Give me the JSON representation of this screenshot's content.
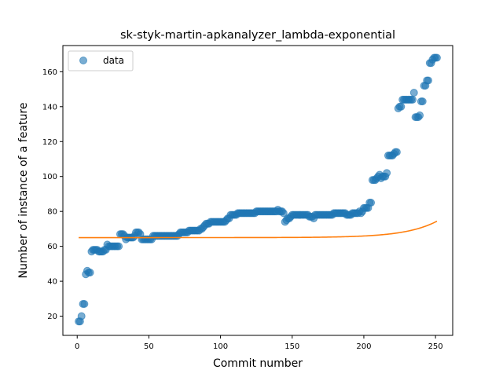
{
  "chart_data": {
    "type": "scatter",
    "title": "sk-styk-martin-apkanalyzer_lambda-exponential",
    "xlabel": "Commit number",
    "ylabel": "Number of instance of a feature",
    "xlim": [
      -10,
      262
    ],
    "ylim": [
      9,
      175
    ],
    "xticks": [
      0,
      50,
      100,
      150,
      200,
      250
    ],
    "yticks": [
      20,
      40,
      60,
      80,
      100,
      120,
      140,
      160
    ],
    "grid": false,
    "legend": {
      "placement": "top-left",
      "entries": [
        "data"
      ]
    },
    "colors": {
      "data": "#1f77b4",
      "fit": "#ff7f0e"
    },
    "series": [
      {
        "name": "data",
        "kind": "scatter",
        "points": [
          [
            1,
            17
          ],
          [
            2,
            17
          ],
          [
            3,
            20
          ],
          [
            4,
            27
          ],
          [
            5,
            27
          ],
          [
            6,
            44
          ],
          [
            7,
            46
          ],
          [
            8,
            45
          ],
          [
            9,
            45
          ],
          [
            10,
            57
          ],
          [
            11,
            58
          ],
          [
            12,
            58
          ],
          [
            13,
            58
          ],
          [
            14,
            58
          ],
          [
            15,
            57
          ],
          [
            16,
            57
          ],
          [
            17,
            57
          ],
          [
            18,
            57
          ],
          [
            19,
            58
          ],
          [
            20,
            58
          ],
          [
            21,
            61
          ],
          [
            22,
            60
          ],
          [
            23,
            60
          ],
          [
            24,
            60
          ],
          [
            25,
            60
          ],
          [
            26,
            60
          ],
          [
            27,
            60
          ],
          [
            28,
            60
          ],
          [
            29,
            60
          ],
          [
            30,
            67
          ],
          [
            31,
            67
          ],
          [
            32,
            67
          ],
          [
            33,
            66
          ],
          [
            34,
            64
          ],
          [
            35,
            65
          ],
          [
            36,
            65
          ],
          [
            37,
            65
          ],
          [
            38,
            65
          ],
          [
            39,
            65
          ],
          [
            40,
            66
          ],
          [
            41,
            68
          ],
          [
            42,
            68
          ],
          [
            43,
            68
          ],
          [
            44,
            67
          ],
          [
            45,
            64
          ],
          [
            46,
            64
          ],
          [
            47,
            64
          ],
          [
            48,
            64
          ],
          [
            49,
            64
          ],
          [
            50,
            64
          ],
          [
            51,
            64
          ],
          [
            52,
            64
          ],
          [
            53,
            66
          ],
          [
            54,
            66
          ],
          [
            55,
            66
          ],
          [
            56,
            66
          ],
          [
            57,
            66
          ],
          [
            58,
            66
          ],
          [
            59,
            66
          ],
          [
            60,
            66
          ],
          [
            61,
            66
          ],
          [
            62,
            66
          ],
          [
            63,
            66
          ],
          [
            64,
            66
          ],
          [
            65,
            66
          ],
          [
            66,
            66
          ],
          [
            67,
            66
          ],
          [
            68,
            66
          ],
          [
            69,
            66
          ],
          [
            70,
            66
          ],
          [
            71,
            67
          ],
          [
            72,
            68
          ],
          [
            73,
            68
          ],
          [
            74,
            68
          ],
          [
            75,
            68
          ],
          [
            76,
            68
          ],
          [
            77,
            68
          ],
          [
            78,
            69
          ],
          [
            79,
            69
          ],
          [
            80,
            69
          ],
          [
            81,
            69
          ],
          [
            82,
            69
          ],
          [
            83,
            69
          ],
          [
            84,
            69
          ],
          [
            85,
            69
          ],
          [
            86,
            70
          ],
          [
            87,
            70
          ],
          [
            88,
            71
          ],
          [
            89,
            72
          ],
          [
            90,
            73
          ],
          [
            91,
            73
          ],
          [
            92,
            73
          ],
          [
            93,
            74
          ],
          [
            94,
            74
          ],
          [
            95,
            74
          ],
          [
            96,
            74
          ],
          [
            97,
            74
          ],
          [
            98,
            74
          ],
          [
            99,
            74
          ],
          [
            100,
            74
          ],
          [
            101,
            74
          ],
          [
            102,
            74
          ],
          [
            103,
            74
          ],
          [
            104,
            75
          ],
          [
            105,
            76
          ],
          [
            106,
            76
          ],
          [
            107,
            78
          ],
          [
            108,
            78
          ],
          [
            109,
            78
          ],
          [
            110,
            78
          ],
          [
            111,
            78
          ],
          [
            112,
            79
          ],
          [
            113,
            79
          ],
          [
            114,
            79
          ],
          [
            115,
            79
          ],
          [
            116,
            79
          ],
          [
            117,
            79
          ],
          [
            118,
            79
          ],
          [
            119,
            79
          ],
          [
            120,
            79
          ],
          [
            121,
            79
          ],
          [
            122,
            79
          ],
          [
            123,
            79
          ],
          [
            124,
            79
          ],
          [
            125,
            80
          ],
          [
            126,
            80
          ],
          [
            127,
            80
          ],
          [
            128,
            80
          ],
          [
            129,
            80
          ],
          [
            130,
            80
          ],
          [
            131,
            80
          ],
          [
            132,
            80
          ],
          [
            133,
            80
          ],
          [
            134,
            80
          ],
          [
            135,
            80
          ],
          [
            136,
            80
          ],
          [
            137,
            80
          ],
          [
            138,
            80
          ],
          [
            139,
            80
          ],
          [
            140,
            81
          ],
          [
            141,
            80
          ],
          [
            142,
            80
          ],
          [
            143,
            80
          ],
          [
            144,
            79
          ],
          [
            145,
            74
          ],
          [
            146,
            75
          ],
          [
            147,
            76
          ],
          [
            148,
            76
          ],
          [
            149,
            77
          ],
          [
            150,
            78
          ],
          [
            151,
            78
          ],
          [
            152,
            78
          ],
          [
            153,
            78
          ],
          [
            154,
            78
          ],
          [
            155,
            78
          ],
          [
            156,
            78
          ],
          [
            157,
            78
          ],
          [
            158,
            78
          ],
          [
            159,
            78
          ],
          [
            160,
            78
          ],
          [
            161,
            78
          ],
          [
            162,
            77
          ],
          [
            163,
            77
          ],
          [
            164,
            77
          ],
          [
            165,
            76
          ],
          [
            166,
            78
          ],
          [
            167,
            78
          ],
          [
            168,
            78
          ],
          [
            169,
            78
          ],
          [
            170,
            78
          ],
          [
            171,
            78
          ],
          [
            172,
            78
          ],
          [
            173,
            78
          ],
          [
            174,
            78
          ],
          [
            175,
            78
          ],
          [
            176,
            78
          ],
          [
            177,
            78
          ],
          [
            178,
            78
          ],
          [
            179,
            79
          ],
          [
            180,
            79
          ],
          [
            181,
            79
          ],
          [
            182,
            79
          ],
          [
            183,
            79
          ],
          [
            184,
            79
          ],
          [
            185,
            79
          ],
          [
            186,
            79
          ],
          [
            187,
            79
          ],
          [
            188,
            78
          ],
          [
            189,
            78
          ],
          [
            190,
            78
          ],
          [
            191,
            78
          ],
          [
            192,
            79
          ],
          [
            193,
            79
          ],
          [
            194,
            79
          ],
          [
            195,
            79
          ],
          [
            196,
            79
          ],
          [
            197,
            80
          ],
          [
            198,
            79
          ],
          [
            199,
            80
          ],
          [
            200,
            82
          ],
          [
            201,
            82
          ],
          [
            202,
            82
          ],
          [
            203,
            82
          ],
          [
            204,
            85
          ],
          [
            205,
            85
          ],
          [
            206,
            98
          ],
          [
            207,
            98
          ],
          [
            208,
            98
          ],
          [
            209,
            99
          ],
          [
            210,
            100
          ],
          [
            211,
            101
          ],
          [
            212,
            99
          ],
          [
            213,
            100
          ],
          [
            214,
            100
          ],
          [
            215,
            100
          ],
          [
            216,
            102
          ],
          [
            217,
            112
          ],
          [
            218,
            112
          ],
          [
            219,
            112
          ],
          [
            220,
            112
          ],
          [
            221,
            113
          ],
          [
            222,
            114
          ],
          [
            223,
            114
          ],
          [
            224,
            139
          ],
          [
            225,
            140
          ],
          [
            226,
            140
          ],
          [
            227,
            144
          ],
          [
            228,
            144
          ],
          [
            229,
            144
          ],
          [
            230,
            144
          ],
          [
            231,
            144
          ],
          [
            232,
            144
          ],
          [
            233,
            144
          ],
          [
            234,
            144
          ],
          [
            235,
            148
          ],
          [
            236,
            134
          ],
          [
            237,
            134
          ],
          [
            238,
            134
          ],
          [
            239,
            135
          ],
          [
            240,
            143
          ],
          [
            241,
            143
          ],
          [
            242,
            152
          ],
          [
            243,
            152
          ],
          [
            244,
            155
          ],
          [
            245,
            155
          ],
          [
            246,
            165
          ],
          [
            247,
            165
          ],
          [
            248,
            167
          ],
          [
            249,
            168
          ],
          [
            250,
            168
          ],
          [
            251,
            168
          ]
        ]
      },
      {
        "kind": "line",
        "model": "exponential",
        "equation": {
          "a": 65,
          "b": 0.000103,
          "c": 0.0455
        },
        "domain": [
          1,
          251
        ]
      }
    ]
  }
}
